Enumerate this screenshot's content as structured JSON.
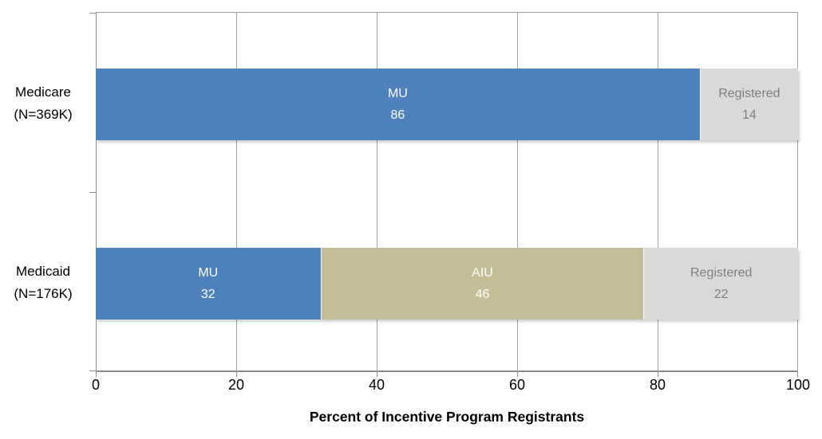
{
  "chart_data": {
    "type": "bar",
    "orientation": "horizontal",
    "stacked": true,
    "title": "",
    "xlabel": "Percent of Incentive Program Registrants",
    "ylabel": "",
    "xlim": [
      0,
      100
    ],
    "xticks": [
      0,
      20,
      40,
      60,
      80,
      100
    ],
    "grid": true,
    "legend_position": "none",
    "categories": [
      "Medicare (N=369K)",
      "Medicaid (N=176K)"
    ],
    "category_lines": [
      [
        "Medicare",
        "(N=369K)"
      ],
      [
        "Medicaid",
        "(N=176K)"
      ]
    ],
    "series": [
      {
        "name": "MU",
        "values": [
          86,
          32
        ],
        "color": "#4f81bd",
        "label_color": "#ffffff"
      },
      {
        "name": "AIU",
        "values": [
          0,
          46
        ],
        "color": "#c4bd97",
        "label_color": "#ffffff"
      },
      {
        "name": "Registered",
        "values": [
          14,
          22
        ],
        "color": "#d9d9d9",
        "label_color": "#7f7f7f"
      }
    ]
  },
  "style_colors": {
    "gridline": "#a3a3a3",
    "axis_line": "#8c8c8c",
    "background": "#ffffff",
    "text": "#000000"
  }
}
